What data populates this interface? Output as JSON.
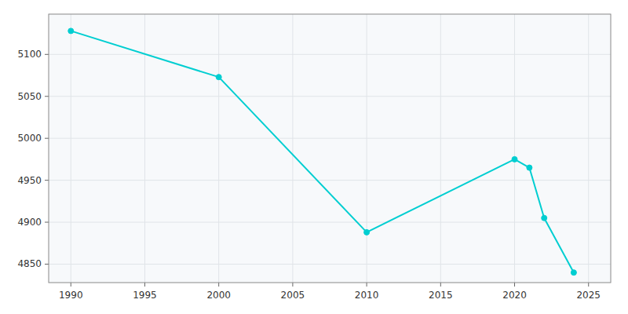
{
  "chart_data": {
    "type": "line",
    "x": [
      1990,
      2000,
      2010,
      2020,
      2021,
      2022,
      2024
    ],
    "values": [
      5128,
      5073,
      4888,
      4975,
      4965,
      4905,
      4840
    ],
    "color": "#00CED1",
    "marker": "circle",
    "xlim": [
      1988.5,
      2026.5
    ],
    "ylim": [
      4828,
      5148
    ],
    "xticks": [
      1990,
      1995,
      2000,
      2005,
      2010,
      2015,
      2020,
      2025
    ],
    "yticks": [
      4850,
      4900,
      4950,
      5000,
      5050,
      5100
    ],
    "grid": true
  }
}
